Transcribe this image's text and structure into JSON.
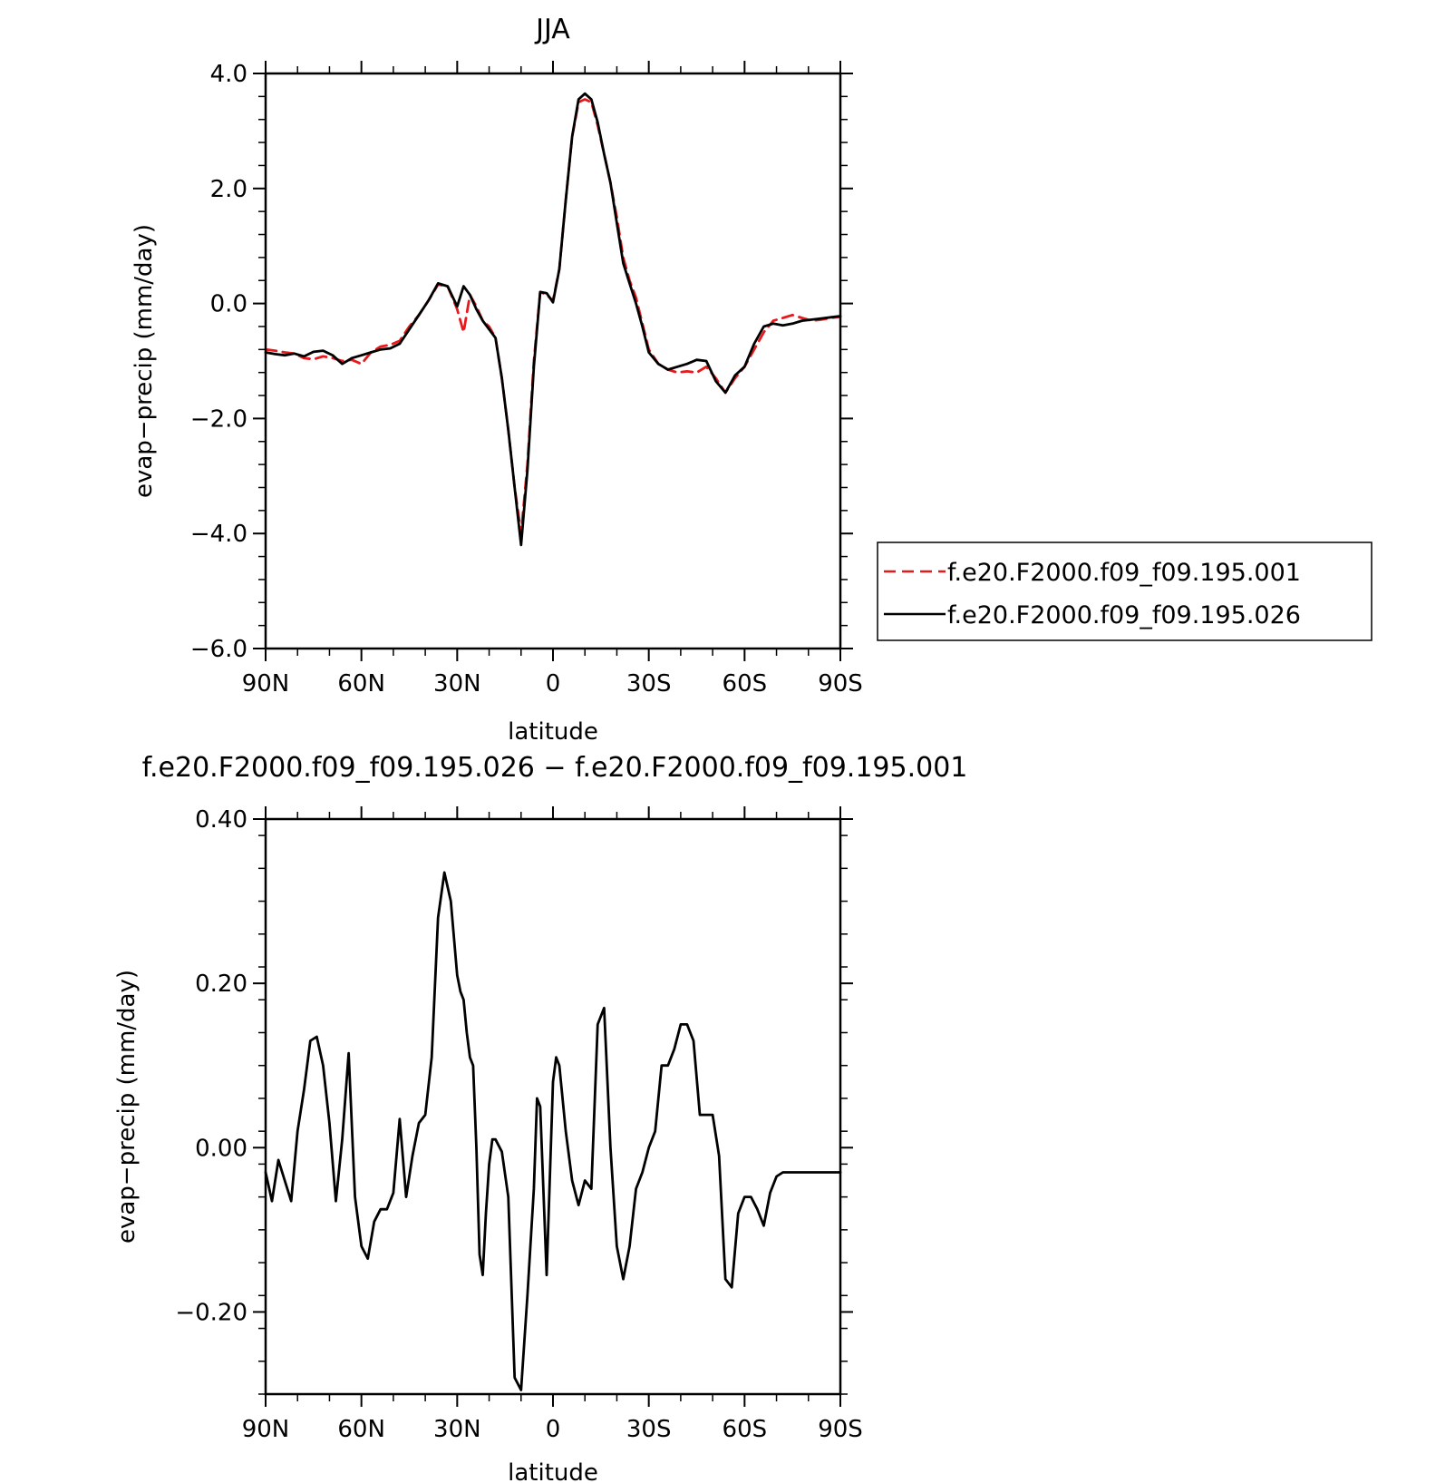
{
  "chart_data": [
    {
      "type": "line",
      "title": "JJA",
      "xlabel": "latitude",
      "ylabel": "evap−precip (mm/day)",
      "xlim": [
        -90,
        90
      ],
      "ylim": [
        -6.0,
        4.0
      ],
      "x_ticks": [
        {
          "value": -90,
          "label": "90N"
        },
        {
          "value": -60,
          "label": "60N"
        },
        {
          "value": -30,
          "label": "30N"
        },
        {
          "value": 0,
          "label": "0"
        },
        {
          "value": 30,
          "label": "30S"
        },
        {
          "value": 60,
          "label": "60S"
        },
        {
          "value": 90,
          "label": "90S"
        }
      ],
      "y_ticks": [
        {
          "value": 4.0,
          "label": "4.0"
        },
        {
          "value": 2.0,
          "label": "2.0"
        },
        {
          "value": 0.0,
          "label": "0.0"
        },
        {
          "value": -2.0,
          "label": "−2.0"
        },
        {
          "value": -4.0,
          "label": "−4.0"
        },
        {
          "value": -6.0,
          "label": "−6.0"
        }
      ],
      "legend_position": "right",
      "series": [
        {
          "name": "f.e20.F2000.f09_f09.195.001",
          "color": "#e8191c",
          "dash": "dashed",
          "x": [
            -90,
            -87,
            -84,
            -81,
            -78,
            -75,
            -72,
            -69,
            -66,
            -63,
            -60,
            -57,
            -54,
            -51,
            -48,
            -45,
            -42,
            -39,
            -36,
            -33,
            -30,
            -28,
            -26,
            -24,
            -22,
            -20,
            -18,
            -16,
            -14,
            -12,
            -10,
            -8,
            -6,
            -4,
            -2,
            0,
            2,
            4,
            6,
            8,
            10,
            12,
            14,
            16,
            18,
            20,
            22,
            24,
            26,
            28,
            30,
            33,
            36,
            39,
            42,
            45,
            48,
            51,
            54,
            57,
            60,
            63,
            66,
            69,
            72,
            75,
            78,
            81,
            84,
            87,
            90
          ],
          "y": [
            -0.8,
            -0.82,
            -0.85,
            -0.87,
            -0.95,
            -0.97,
            -0.92,
            -0.95,
            -1.0,
            -0.98,
            -1.05,
            -0.85,
            -0.75,
            -0.72,
            -0.65,
            -0.4,
            -0.2,
            0.05,
            0.33,
            0.3,
            -0.1,
            -0.5,
            0.15,
            -0.05,
            -0.3,
            -0.4,
            -0.6,
            -1.3,
            -2.2,
            -3.2,
            -4.0,
            -2.8,
            -1.0,
            0.2,
            0.15,
            0.05,
            0.6,
            1.8,
            2.9,
            3.5,
            3.55,
            3.5,
            3.1,
            2.6,
            2.1,
            1.5,
            0.8,
            0.4,
            0.1,
            -0.35,
            -0.8,
            -1.05,
            -1.15,
            -1.2,
            -1.18,
            -1.2,
            -1.1,
            -1.3,
            -1.55,
            -1.3,
            -1.1,
            -0.8,
            -0.5,
            -0.3,
            -0.25,
            -0.2,
            -0.25,
            -0.3,
            -0.28,
            -0.25,
            -0.23
          ]
        },
        {
          "name": "f.e20.F2000.f09_f09.195.026",
          "color": "#000000",
          "dash": "solid",
          "x": [
            -90,
            -87,
            -84,
            -81,
            -78,
            -75,
            -72,
            -69,
            -66,
            -63,
            -60,
            -57,
            -54,
            -51,
            -48,
            -45,
            -42,
            -39,
            -36,
            -33,
            -30,
            -28,
            -26,
            -24,
            -22,
            -20,
            -18,
            -16,
            -14,
            -12,
            -10,
            -8,
            -6,
            -4,
            -2,
            0,
            2,
            4,
            6,
            8,
            10,
            12,
            14,
            16,
            18,
            20,
            22,
            24,
            26,
            28,
            30,
            33,
            36,
            39,
            42,
            45,
            48,
            51,
            54,
            57,
            60,
            63,
            66,
            69,
            72,
            75,
            78,
            81,
            84,
            87,
            90
          ],
          "y": [
            -0.85,
            -0.88,
            -0.9,
            -0.87,
            -0.92,
            -0.84,
            -0.82,
            -0.9,
            -1.05,
            -0.95,
            -0.9,
            -0.85,
            -0.8,
            -0.78,
            -0.7,
            -0.45,
            -0.2,
            0.05,
            0.35,
            0.3,
            -0.05,
            0.3,
            0.15,
            -0.1,
            -0.3,
            -0.45,
            -0.6,
            -1.3,
            -2.2,
            -3.2,
            -4.2,
            -2.9,
            -1.1,
            0.2,
            0.18,
            0.02,
            0.6,
            1.8,
            2.9,
            3.55,
            3.65,
            3.55,
            3.15,
            2.6,
            2.1,
            1.4,
            0.7,
            0.35,
            0.0,
            -0.4,
            -0.85,
            -1.05,
            -1.15,
            -1.1,
            -1.05,
            -0.98,
            -1.0,
            -1.35,
            -1.55,
            -1.25,
            -1.1,
            -0.7,
            -0.4,
            -0.35,
            -0.38,
            -0.35,
            -0.3,
            -0.28,
            -0.26,
            -0.24,
            -0.22
          ]
        }
      ]
    },
    {
      "type": "line",
      "title": "f.e20.F2000.f09_f09.195.026 − f.e20.F2000.f09_f09.195.001",
      "xlabel": "latitude",
      "ylabel": "evap−precip (mm/day)",
      "xlim": [
        -90,
        90
      ],
      "ylim": [
        -0.3,
        0.4
      ],
      "x_ticks": [
        {
          "value": -90,
          "label": "90N"
        },
        {
          "value": -60,
          "label": "60N"
        },
        {
          "value": -30,
          "label": "30N"
        },
        {
          "value": 0,
          "label": "0"
        },
        {
          "value": 30,
          "label": "30S"
        },
        {
          "value": 60,
          "label": "60S"
        },
        {
          "value": 90,
          "label": "90S"
        }
      ],
      "y_ticks": [
        {
          "value": 0.4,
          "label": "0.40"
        },
        {
          "value": 0.2,
          "label": "0.20"
        },
        {
          "value": 0.0,
          "label": "0.00"
        },
        {
          "value": -0.2,
          "label": "−0.20"
        }
      ],
      "series": [
        {
          "color": "#000000",
          "dash": "solid",
          "x": [
            -90,
            -88,
            -86,
            -84,
            -82,
            -80,
            -78,
            -76,
            -74,
            -72,
            -70,
            -68,
            -66,
            -64,
            -62,
            -60,
            -58,
            -56,
            -54,
            -52,
            -50,
            -48,
            -46,
            -44,
            -42,
            -40,
            -38,
            -36,
            -34,
            -32,
            -30,
            -29,
            -28,
            -27,
            -26,
            -25,
            -24,
            -23,
            -22,
            -21,
            -20,
            -19,
            -18,
            -16,
            -14,
            -12,
            -10,
            -8,
            -6,
            -5,
            -4,
            -2,
            0,
            1,
            2,
            4,
            6,
            8,
            10,
            12,
            14,
            16,
            18,
            20,
            22,
            24,
            26,
            28,
            30,
            32,
            34,
            36,
            38,
            40,
            42,
            44,
            46,
            48,
            50,
            52,
            54,
            56,
            58,
            60,
            62,
            64,
            66,
            68,
            70,
            72,
            74,
            76,
            78,
            80,
            82,
            84,
            86,
            88,
            90
          ],
          "y": [
            -0.03,
            -0.065,
            -0.015,
            -0.04,
            -0.065,
            0.02,
            0.07,
            0.13,
            0.135,
            0.1,
            0.03,
            -0.065,
            0.01,
            0.115,
            -0.06,
            -0.12,
            -0.135,
            -0.09,
            -0.075,
            -0.075,
            -0.055,
            0.035,
            -0.06,
            -0.01,
            0.03,
            0.04,
            0.11,
            0.28,
            0.335,
            0.3,
            0.21,
            0.19,
            0.18,
            0.14,
            0.11,
            0.1,
            0.0,
            -0.13,
            -0.155,
            -0.08,
            -0.02,
            0.01,
            0.01,
            -0.005,
            -0.06,
            -0.28,
            -0.295,
            -0.18,
            -0.05,
            0.06,
            0.05,
            -0.155,
            0.08,
            0.11,
            0.1,
            0.02,
            -0.04,
            -0.07,
            -0.04,
            -0.05,
            0.15,
            0.17,
            0.0,
            -0.12,
            -0.16,
            -0.12,
            -0.05,
            -0.03,
            0.0,
            0.02,
            0.1,
            0.1,
            0.12,
            0.15,
            0.15,
            0.13,
            0.04,
            0.04,
            0.04,
            -0.01,
            -0.16,
            -0.17,
            -0.08,
            -0.06,
            -0.06,
            -0.075,
            -0.095,
            -0.055,
            -0.035,
            -0.03,
            -0.03,
            -0.03,
            -0.03,
            -0.03,
            -0.03,
            -0.03,
            -0.03,
            -0.03,
            -0.03
          ]
        }
      ]
    }
  ]
}
